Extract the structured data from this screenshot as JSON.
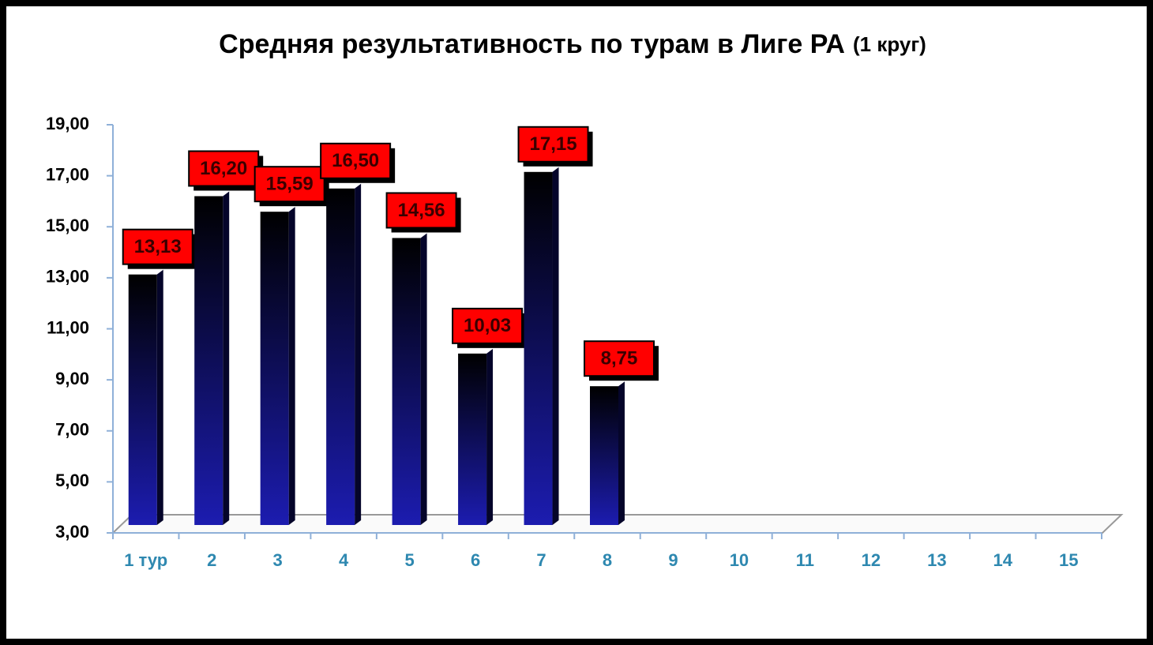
{
  "chart_data": {
    "type": "bar",
    "title": "Средняя результативность по турам в Лиге РА",
    "subtitle": "(1 круг)",
    "categories": [
      "1 тур",
      "2",
      "3",
      "4",
      "5",
      "6",
      "7",
      "8",
      "9",
      "10",
      "11",
      "12",
      "13",
      "14",
      "15"
    ],
    "values": [
      13.13,
      16.2,
      15.59,
      16.5,
      14.56,
      10.03,
      17.15,
      8.75,
      null,
      null,
      null,
      null,
      null,
      null,
      null
    ],
    "value_labels": [
      "13,13",
      "16,20",
      "15,59",
      "16,50",
      "14,56",
      "10,03",
      "17,15",
      "8,75",
      null,
      null,
      null,
      null,
      null,
      null,
      null
    ],
    "color": "#1c1cb0",
    "label_color": "#ff0000",
    "ylim": [
      3,
      19
    ],
    "yticks": [
      {
        "value": 3,
        "label": "3,00"
      },
      {
        "value": 5,
        "label": "5,00"
      },
      {
        "value": 7,
        "label": "7,00"
      },
      {
        "value": 9,
        "label": "9,00"
      },
      {
        "value": 11,
        "label": "11,00"
      },
      {
        "value": 13,
        "label": "13,00"
      },
      {
        "value": 15,
        "label": "15,00"
      },
      {
        "value": 17,
        "label": "17,00"
      },
      {
        "value": 19,
        "label": "19,00"
      }
    ],
    "grid": false
  }
}
